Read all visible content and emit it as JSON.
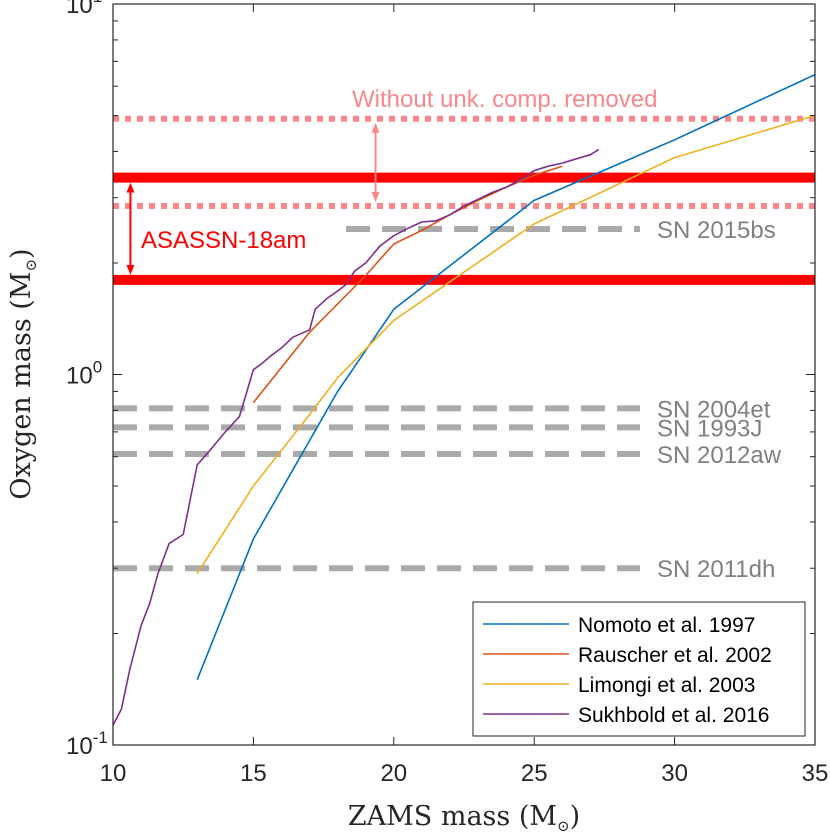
{
  "chart_data": {
    "type": "line",
    "xlabel": "ZAMS mass (M",
    "ylabel": "Oxygen mass (M",
    "xlim": [
      10,
      35
    ],
    "ylim": [
      0.1,
      10
    ],
    "yscale": "log",
    "x_ticks": [
      10,
      15,
      20,
      25,
      30,
      35
    ],
    "x_tick_labels": [
      "10",
      "15",
      "20",
      "25",
      "30",
      "35"
    ],
    "y_tick_labels": [
      {
        "base": "10",
        "exp": "-1",
        "value": 0.1
      },
      {
        "base": "10",
        "exp": "0",
        "value": 1
      },
      {
        "base": "10",
        "exp": "1",
        "value": 10
      }
    ],
    "grid": false,
    "legend_position": "bottom-right",
    "series": [
      {
        "name": "Nomoto et al. 1997",
        "color": "#0072BD",
        "x": [
          13,
          15,
          18,
          20,
          25,
          30,
          35
        ],
        "y": [
          0.15,
          0.36,
          0.9,
          1.5,
          2.95,
          4.3,
          6.45
        ]
      },
      {
        "name": "Rauscher et al. 2002",
        "color": "#D95319",
        "x": [
          15,
          17,
          19,
          20,
          21,
          22,
          23,
          24,
          25,
          26
        ],
        "y": [
          0.84,
          1.3,
          1.85,
          2.25,
          2.45,
          2.7,
          2.95,
          3.2,
          3.45,
          3.65
        ]
      },
      {
        "name": "Limongi et al. 2003",
        "color": "#EDB120",
        "x": [
          13,
          15,
          17,
          18,
          20,
          25,
          30,
          35
        ],
        "y": [
          0.29,
          0.5,
          0.78,
          0.98,
          1.4,
          2.55,
          3.85,
          5.0
        ]
      },
      {
        "name": "Sukhbold et al. 2016",
        "color": "#7E2F8E",
        "x": [
          10,
          10.3,
          10.6,
          11,
          11.3,
          11.6,
          12,
          12.5,
          13,
          13.5,
          14,
          14.5,
          15,
          15.3,
          15.6,
          16,
          16.4,
          17,
          17.2,
          17.6,
          18,
          18.3,
          18.6,
          19,
          19.5,
          20,
          20.5,
          21,
          21.5,
          22,
          22.5,
          23,
          23.5,
          24,
          24.5,
          25,
          25.5,
          26,
          26.5,
          27,
          27.3
        ],
        "y": [
          0.113,
          0.125,
          0.16,
          0.21,
          0.24,
          0.29,
          0.35,
          0.37,
          0.57,
          0.63,
          0.7,
          0.77,
          1.03,
          1.07,
          1.12,
          1.18,
          1.26,
          1.32,
          1.5,
          1.6,
          1.68,
          1.75,
          1.9,
          2.0,
          2.22,
          2.37,
          2.48,
          2.58,
          2.6,
          2.7,
          2.85,
          2.97,
          3.1,
          3.2,
          3.35,
          3.55,
          3.65,
          3.72,
          3.82,
          3.92,
          4.05
        ]
      }
    ],
    "reference_lines": [
      {
        "label": "SN 2015bs",
        "value": 2.47,
        "color": "#AAAAAA",
        "x_start": 18.3
      },
      {
        "label": "SN 2004et",
        "value": 0.81,
        "color": "#AAAAAA",
        "x_start": 10
      },
      {
        "label": "SN 1993J",
        "value": 0.72,
        "color": "#AAAAAA",
        "x_start": 10
      },
      {
        "label": "SN 2012aw",
        "value": 0.61,
        "color": "#AAAAAA",
        "x_start": 10
      },
      {
        "label": "SN 2011dh",
        "value": 0.3,
        "color": "#AAAAAA",
        "x_start": 10
      }
    ],
    "object_band": {
      "label": "ASASSN-18am",
      "low": 1.8,
      "high": 3.4,
      "color": "#FF0000"
    },
    "unremoved_band": {
      "label": "Without unk. comp. removed",
      "low": 2.85,
      "high": 4.9,
      "color": "#F8888B"
    }
  }
}
